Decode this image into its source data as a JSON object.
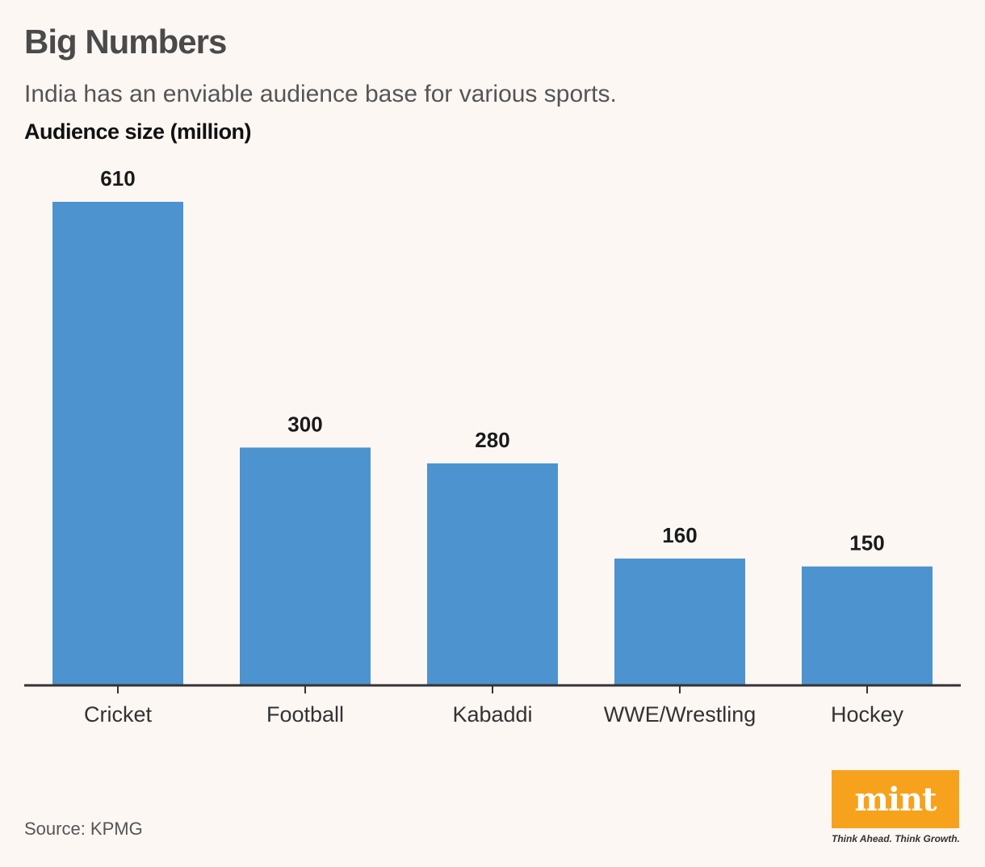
{
  "header": {
    "title": "Big Numbers",
    "subtitle": "India has an enviable audience base for various sports.",
    "ylabel": "Audience size (million)"
  },
  "footer": {
    "source": "Source: KPMG",
    "logo_word": "mint",
    "logo_tagline": "Think Ahead. Think Growth."
  },
  "colors": {
    "bar": "#4d93cf",
    "axis": "#333333",
    "background": "#fdf7f4",
    "logo": "#f7a21c"
  },
  "chart_data": {
    "type": "bar",
    "title": "Big Numbers",
    "subtitle": "India has an enviable audience base for various sports.",
    "xlabel": "",
    "ylabel": "Audience size (million)",
    "categories": [
      "Cricket",
      "Football",
      "Kabaddi",
      "WWE/Wrestling",
      "Hockey"
    ],
    "values": [
      610,
      300,
      280,
      160,
      150
    ],
    "data_labels": [
      "610",
      "300",
      "280",
      "160",
      "150"
    ],
    "ylim": [
      0,
      610
    ],
    "grid": false,
    "legend": "none"
  }
}
